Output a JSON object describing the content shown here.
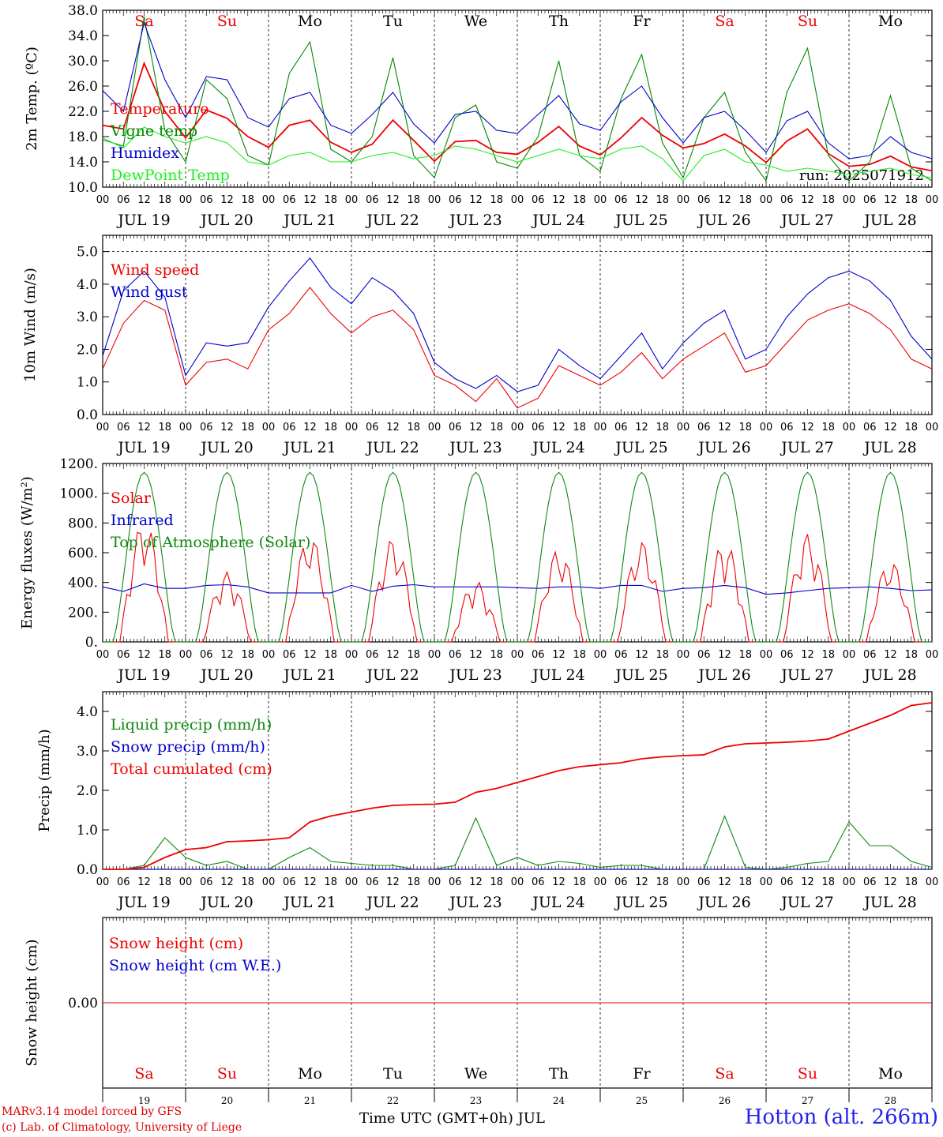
{
  "chart_data": [
    {
      "type": "line",
      "ylabel": "2m Temp. (ºC)",
      "ylim": [
        10,
        38
      ],
      "yticks": [
        "10.0",
        "14.0",
        "18.0",
        "22.0",
        "26.0",
        "30.0",
        "34.0",
        "38.0"
      ],
      "annotation": "run: 2025071912",
      "x_hours": [
        0,
        6,
        12,
        18,
        24,
        30,
        36,
        42,
        48,
        54,
        60,
        66,
        72,
        78,
        84,
        90,
        96,
        102,
        108,
        114,
        120,
        126,
        132,
        138,
        144,
        150,
        156,
        162,
        168,
        174,
        180,
        186,
        192,
        198,
        204,
        210,
        216,
        222,
        228,
        234,
        240
      ],
      "series": [
        {
          "name": "Temperature",
          "color": "#ee0000",
          "values": [
            19.8,
            19.2,
            29.6,
            22.0,
            17.8,
            22.2,
            20.9,
            18.0,
            16.3,
            19.8,
            20.6,
            17.1,
            15.5,
            16.8,
            20.6,
            17.4,
            14.1,
            17.2,
            17.4,
            15.5,
            15.2,
            17.1,
            19.6,
            16.5,
            15.1,
            17.8,
            21.0,
            18.2,
            16.2,
            16.9,
            18.4,
            16.5,
            13.9,
            17.3,
            19.2,
            15.3,
            13.3,
            13.6,
            14.9,
            13.2,
            12.6
          ]
        },
        {
          "name": "Vigne temp",
          "color": "#008800",
          "values": [
            17.5,
            16.5,
            37.0,
            19.0,
            14.0,
            27.0,
            24.0,
            15.0,
            13.5,
            28.0,
            33.0,
            16.0,
            14.0,
            18.0,
            30.5,
            15.0,
            11.5,
            21.0,
            23.0,
            14.0,
            13.0,
            18.0,
            30.0,
            15.0,
            12.5,
            24.0,
            31.0,
            17.0,
            11.5,
            21.0,
            25.0,
            15.5,
            11.0,
            25.0,
            32.0,
            15.0,
            11.0,
            14.0,
            24.5,
            13.0,
            11.0
          ]
        },
        {
          "name": "Humidex",
          "color": "#0000cc",
          "values": [
            25.3,
            22.0,
            36.0,
            27.0,
            21.0,
            27.5,
            27.0,
            21.0,
            19.5,
            24.0,
            25.0,
            19.8,
            18.5,
            21.5,
            25.0,
            20.0,
            17.0,
            21.5,
            22.0,
            19.0,
            18.5,
            21.5,
            24.5,
            20.0,
            19.0,
            23.5,
            26.0,
            21.0,
            17.0,
            21.0,
            22.0,
            19.0,
            15.5,
            20.5,
            22.0,
            17.0,
            14.5,
            15.0,
            18.0,
            15.5,
            14.5
          ]
        },
        {
          "name": "DewPoint Temp",
          "color": "#22ee22",
          "values": [
            17.8,
            16.2,
            19.5,
            18.0,
            17.0,
            18.0,
            17.0,
            14.0,
            13.5,
            15.0,
            15.5,
            14.0,
            14.0,
            15.0,
            15.5,
            14.5,
            15.0,
            16.5,
            16.0,
            15.0,
            14.0,
            15.0,
            16.0,
            15.0,
            14.5,
            16.0,
            16.5,
            14.5,
            11.0,
            15.0,
            16.0,
            14.0,
            13.5,
            12.5,
            13.0,
            12.5,
            12.0,
            12.5,
            13.0,
            12.0,
            11.5
          ]
        }
      ]
    },
    {
      "type": "line",
      "ylabel": "10m Wind (m/s)",
      "ylim": [
        0,
        5.5
      ],
      "yticks": [
        "0.0",
        "1.0",
        "2.0",
        "3.0",
        "4.0",
        "5.0"
      ],
      "x_hours": [
        0,
        6,
        12,
        18,
        24,
        30,
        36,
        42,
        48,
        54,
        60,
        66,
        72,
        78,
        84,
        90,
        96,
        102,
        108,
        114,
        120,
        126,
        132,
        138,
        144,
        150,
        156,
        162,
        168,
        174,
        180,
        186,
        192,
        198,
        204,
        210,
        216,
        222,
        228,
        234,
        240
      ],
      "series": [
        {
          "name": "Wind speed",
          "color": "#ee0000",
          "values": [
            1.4,
            2.8,
            3.5,
            3.2,
            0.9,
            1.6,
            1.7,
            1.4,
            2.6,
            3.1,
            3.9,
            3.1,
            2.5,
            3.0,
            3.2,
            2.6,
            1.2,
            0.9,
            0.4,
            1.1,
            0.2,
            0.5,
            1.5,
            1.2,
            0.9,
            1.3,
            1.9,
            1.1,
            1.7,
            2.1,
            2.5,
            1.3,
            1.5,
            2.2,
            2.9,
            3.2,
            3.4,
            3.1,
            2.6,
            1.7,
            1.4
          ]
        },
        {
          "name": "Wind gust",
          "color": "#0000cc",
          "values": [
            1.8,
            3.8,
            4.4,
            3.6,
            1.2,
            2.2,
            2.1,
            2.2,
            3.3,
            4.1,
            4.8,
            3.9,
            3.4,
            4.2,
            3.8,
            3.1,
            1.6,
            1.1,
            0.8,
            1.2,
            0.7,
            0.9,
            2.0,
            1.5,
            1.1,
            1.8,
            2.5,
            1.4,
            2.2,
            2.8,
            3.2,
            1.7,
            2.0,
            3.0,
            3.7,
            4.2,
            4.4,
            4.1,
            3.5,
            2.4,
            1.7
          ]
        }
      ]
    },
    {
      "type": "line",
      "ylabel": "Energy fluxes (W/m²)",
      "ylim": [
        0,
        1200
      ],
      "yticks": [
        "0.",
        "200.",
        "400.",
        "600.",
        "800.",
        "1000.",
        "1200."
      ],
      "series": [
        {
          "name": "Solar",
          "color": "#ee0000",
          "peaks": [
            820,
            470,
            720,
            700,
            410,
            630,
            680,
            680,
            730,
            550
          ]
        },
        {
          "name": "Infrared",
          "color": "#0000cc",
          "values": [
            370,
            340,
            390,
            360,
            360,
            380,
            385,
            370,
            330,
            330,
            330,
            330,
            380,
            340,
            375,
            385,
            370,
            370,
            370,
            370,
            365,
            360,
            370,
            370,
            360,
            380,
            380,
            340,
            360,
            365,
            380,
            365,
            320,
            330,
            345,
            360,
            365,
            370,
            360,
            345,
            350
          ]
        },
        {
          "name": "Top of Atmosphere (Solar)",
          "color": "#118811",
          "daily_peak": 1140
        }
      ]
    },
    {
      "type": "line",
      "ylabel": "Precip (mm/h)",
      "ylim": [
        0,
        4.5
      ],
      "yticks": [
        "0.0",
        "1.0",
        "2.0",
        "3.0",
        "4.0"
      ],
      "x_hours": [
        0,
        6,
        12,
        18,
        24,
        30,
        36,
        42,
        48,
        54,
        60,
        66,
        72,
        78,
        84,
        90,
        96,
        102,
        108,
        114,
        120,
        126,
        132,
        138,
        144,
        150,
        156,
        162,
        168,
        174,
        180,
        186,
        192,
        198,
        204,
        210,
        216,
        222,
        228,
        234,
        240
      ],
      "series": [
        {
          "name": "Liquid precip (mm/h)",
          "color": "#118811",
          "values": [
            0,
            0,
            0.1,
            0.8,
            0.3,
            0.1,
            0.2,
            0,
            0,
            0.3,
            0.55,
            0.2,
            0.15,
            0.1,
            0.1,
            0,
            0,
            0.1,
            1.3,
            0.1,
            0.3,
            0.1,
            0.2,
            0.15,
            0.05,
            0.1,
            0.1,
            0,
            0,
            0,
            1.35,
            0.05,
            0,
            0.05,
            0.15,
            0.2,
            1.2,
            0.6,
            0.6,
            0.2,
            0.05
          ]
        },
        {
          "name": "Snow precip (mm/h)",
          "color": "#0000cc",
          "values": [
            0,
            0,
            0,
            0,
            0,
            0,
            0,
            0,
            0,
            0,
            0,
            0,
            0,
            0,
            0,
            0,
            0,
            0,
            0,
            0,
            0,
            0,
            0,
            0,
            0,
            0,
            0,
            0,
            0,
            0,
            0,
            0,
            0,
            0,
            0,
            0,
            0,
            0,
            0,
            0,
            0
          ]
        },
        {
          "name": "Total cumulated (cm)",
          "color": "#ee0000",
          "values": [
            0,
            0,
            0.05,
            0.3,
            0.5,
            0.55,
            0.7,
            0.72,
            0.75,
            0.8,
            1.2,
            1.35,
            1.45,
            1.55,
            1.62,
            1.64,
            1.65,
            1.7,
            1.95,
            2.05,
            2.2,
            2.35,
            2.5,
            2.6,
            2.65,
            2.7,
            2.8,
            2.85,
            2.88,
            2.9,
            3.1,
            3.18,
            3.2,
            3.22,
            3.25,
            3.3,
            3.5,
            3.7,
            3.9,
            4.15,
            4.22
          ]
        }
      ]
    },
    {
      "type": "line",
      "ylabel": "Snow height (cm)",
      "yticks": [
        "0.00"
      ],
      "series": [
        {
          "name": "Snow height (cm)",
          "color": "#ee0000",
          "values": [
            0,
            0
          ]
        },
        {
          "name": "Snow height (cm W.E.)",
          "color": "#0000cc",
          "values": [
            0,
            0
          ]
        }
      ]
    }
  ],
  "days": [
    {
      "abbr": "Sa",
      "date": "JUL 19",
      "num": "19",
      "weekend": true
    },
    {
      "abbr": "Su",
      "date": "JUL 20",
      "num": "20",
      "weekend": true
    },
    {
      "abbr": "Mo",
      "date": "JUL 21",
      "num": "21",
      "weekend": false
    },
    {
      "abbr": "Tu",
      "date": "JUL 22",
      "num": "22",
      "weekend": false
    },
    {
      "abbr": "We",
      "date": "JUL 23",
      "num": "23",
      "weekend": false
    },
    {
      "abbr": "Th",
      "date": "JUL 24",
      "num": "24",
      "weekend": false
    },
    {
      "abbr": "Fr",
      "date": "JUL 25",
      "num": "25",
      "weekend": false
    },
    {
      "abbr": "Sa",
      "date": "JUL 26",
      "num": "26",
      "weekend": true
    },
    {
      "abbr": "Su",
      "date": "JUL 27",
      "num": "27",
      "weekend": true
    },
    {
      "abbr": "Mo",
      "date": "JUL 28",
      "num": "28",
      "weekend": false
    }
  ],
  "hour_labels": [
    "00",
    "06",
    "12",
    "18"
  ],
  "end_hour_label": "00",
  "footer": {
    "credit_line1": "MARv3.14 model forced by GFS",
    "credit_line2": "(c) Lab. of Climatology, University of Liege",
    "xaxis_title": "Time UTC (GMT+0h) JUL",
    "station": "Hotton (alt. 266m)"
  },
  "colors": {
    "weekend": "#ee0000",
    "weekday": "#000000"
  }
}
